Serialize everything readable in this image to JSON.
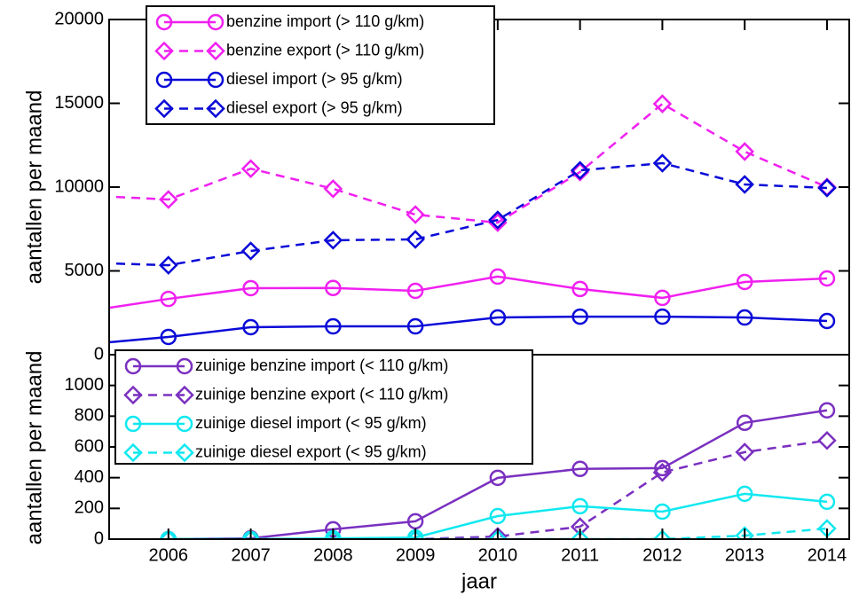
{
  "chart_data": [
    {
      "type": "line",
      "y_label": "aantallen per maand",
      "x": [
        2005,
        2006,
        2007,
        2008,
        2009,
        2010,
        2011,
        2012,
        2013,
        2014
      ],
      "xlim": [
        2005.28,
        2014.27
      ],
      "xticks": [
        2006,
        2007,
        2008,
        2009,
        2010,
        2011,
        2012,
        2013,
        2014
      ],
      "ylim": [
        0,
        20000
      ],
      "yticks": [
        0,
        5000,
        10000,
        15000,
        20000
      ],
      "series": [
        {
          "name": "benzine import (> 110 g/km)",
          "color": "#f020f0",
          "marker": "circle",
          "linestyle": "solid",
          "values": [
            2590,
            3330,
            3970,
            3980,
            3810,
            4660,
            3920,
            3390,
            4340,
            4550
          ]
        },
        {
          "name": "benzine export (> 110 g/km)",
          "color": "#f020f0",
          "marker": "diamond",
          "linestyle": "dashed",
          "values": [
            9500,
            9260,
            11100,
            9900,
            8360,
            7880,
            10900,
            14970,
            12120,
            10000
          ]
        },
        {
          "name": "diesel import (> 95 g/km)",
          "color": "#0a0ad8",
          "marker": "circle",
          "linestyle": "solid",
          "values": [
            620,
            1060,
            1640,
            1690,
            1690,
            2220,
            2270,
            2270,
            2220,
            2010
          ]
        },
        {
          "name": "diesel export (> 95 g/km)",
          "color": "#0a0ad8",
          "marker": "diamond",
          "linestyle": "dashed",
          "values": [
            5490,
            5340,
            6190,
            6830,
            6880,
            8040,
            11000,
            11430,
            10160,
            9950
          ]
        }
      ]
    },
    {
      "type": "line",
      "y_label": "aantallen per maand",
      "x_label": "jaar",
      "x": [
        2006,
        2007,
        2008,
        2009,
        2010,
        2011,
        2012,
        2013,
        2014
      ],
      "xlim": [
        2005.28,
        2014.27
      ],
      "xticks": [
        2006,
        2007,
        2008,
        2009,
        2010,
        2011,
        2012,
        2013,
        2014
      ],
      "ylim": [
        0,
        1200
      ],
      "yticks": [
        0,
        200,
        400,
        600,
        800,
        1000
      ],
      "series": [
        {
          "name": "zuinige benzine import (< 110 g/km)",
          "color": "#7a30c0",
          "marker": "circle",
          "linestyle": "solid",
          "values": [
            0,
            5,
            64,
            116,
            399,
            457,
            462,
            757,
            838
          ]
        },
        {
          "name": "zuinige benzine export (< 110 g/km)",
          "color": "#7a30c0",
          "marker": "diamond",
          "linestyle": "dashed",
          "values": [
            0,
            0,
            0,
            0,
            17,
            81,
            434,
            566,
            642
          ]
        },
        {
          "name": "zuinige diesel import (< 95 g/km)",
          "color": "#10e8f0",
          "marker": "circle",
          "linestyle": "solid",
          "values": [
            0,
            0,
            5,
            10,
            150,
            214,
            179,
            295,
            243
          ]
        },
        {
          "name": "zuinige diesel export (< 95 g/km)",
          "color": "#10e8f0",
          "marker": "diamond",
          "linestyle": "dashed",
          "values": [
            0,
            0,
            0,
            0,
            0,
            0,
            0,
            23,
            69
          ]
        }
      ]
    }
  ]
}
